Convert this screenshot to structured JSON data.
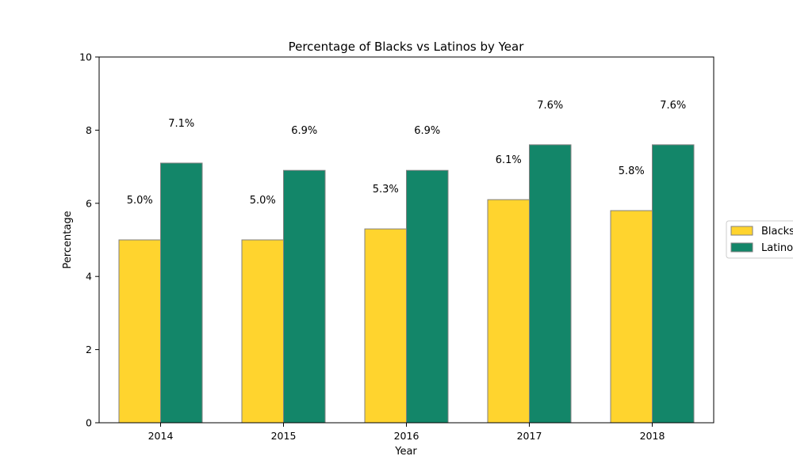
{
  "chart_data": {
    "type": "bar",
    "title": "Percentage of Blacks vs Latinos by Year",
    "xlabel": "Year",
    "ylabel": "Percentage",
    "categories": [
      "2014",
      "2015",
      "2016",
      "2017",
      "2018"
    ],
    "series": [
      {
        "name": "Blacks",
        "color": "#FFD42E",
        "values": [
          5.0,
          5.0,
          5.3,
          6.1,
          5.8
        ],
        "labels": [
          "5.0%",
          "5.0%",
          "5.3%",
          "6.1%",
          "5.8%"
        ]
      },
      {
        "name": "Latinos",
        "color": "#138669",
        "values": [
          7.1,
          6.9,
          6.9,
          7.6,
          7.6
        ],
        "labels": [
          "7.1%",
          "6.9%",
          "6.9%",
          "7.6%",
          "7.6%"
        ]
      }
    ],
    "ylim": [
      0,
      10
    ],
    "yticks": [
      "0",
      "2",
      "4",
      "6",
      "8",
      "10"
    ],
    "grid": false,
    "legend_position": "right",
    "bar_edge_color": "#808080"
  }
}
